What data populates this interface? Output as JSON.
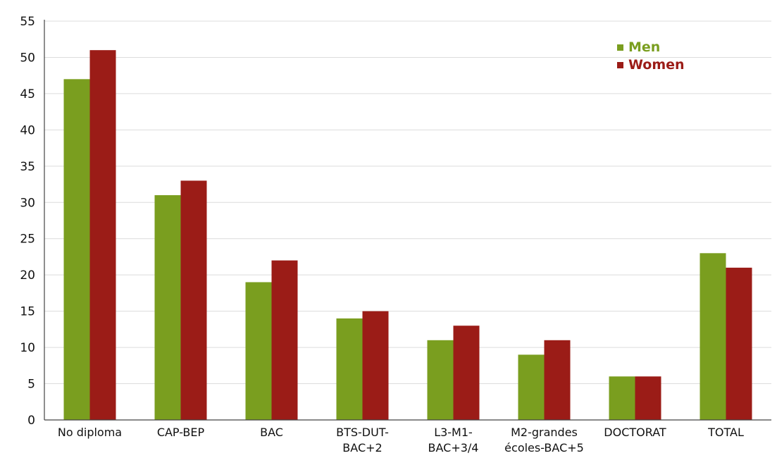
{
  "chart_data": {
    "type": "bar",
    "categories": [
      [
        "No diploma"
      ],
      [
        "CAP-BEP"
      ],
      [
        "BAC"
      ],
      [
        "BTS-DUT-",
        "BAC+2"
      ],
      [
        "L3-M1-",
        "BAC+3/4"
      ],
      [
        "M2-grandes",
        "écoles-BAC+5"
      ],
      [
        "DOCTORAT"
      ],
      [
        "TOTAL"
      ]
    ],
    "series": [
      {
        "name": "Men",
        "color": "#7a9e1f",
        "values": [
          47,
          31,
          19,
          14,
          11,
          9,
          6,
          23
        ]
      },
      {
        "name": "Women",
        "color": "#9b1c17",
        "values": [
          51,
          33,
          22,
          15,
          13,
          11,
          6,
          21
        ]
      }
    ],
    "ylim": [
      0,
      55
    ],
    "yticks": [
      0,
      5,
      10,
      15,
      20,
      25,
      30,
      35,
      40,
      45,
      50,
      55
    ],
    "grid": true,
    "legend_position": "top-right",
    "title": "",
    "xlabel": "",
    "ylabel": ""
  }
}
